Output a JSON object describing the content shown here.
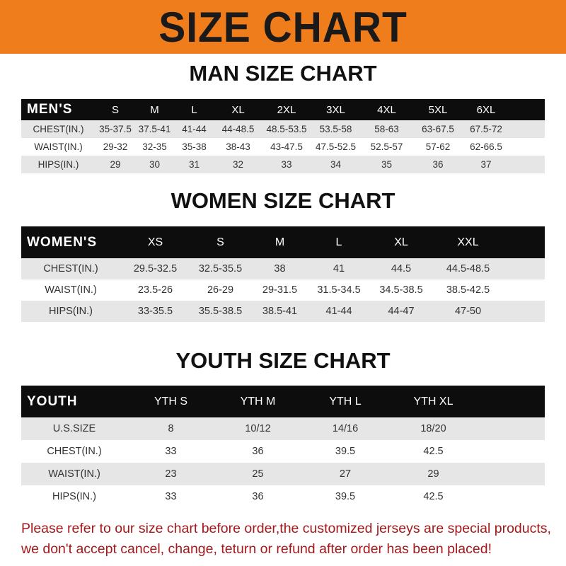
{
  "banner": "SIZE CHART",
  "men": {
    "title": "MAN SIZE CHART",
    "header": "MEN'S",
    "sizes": [
      "S",
      "M",
      "L",
      "XL",
      "2XL",
      "3XL",
      "4XL",
      "5XL",
      "6XL"
    ],
    "rows": [
      {
        "label": "CHEST(IN.)",
        "values": [
          "35-37.5",
          "37.5-41",
          "41-44",
          "44-48.5",
          "48.5-53.5",
          "53.5-58",
          "58-63",
          "63-67.5",
          "67.5-72"
        ]
      },
      {
        "label": "WAIST(IN.)",
        "values": [
          "29-32",
          "32-35",
          "35-38",
          "38-43",
          "43-47.5",
          "47.5-52.5",
          "52.5-57",
          "57-62",
          "62-66.5"
        ]
      },
      {
        "label": "HIPS(IN.)",
        "values": [
          "29",
          "30",
          "31",
          "32",
          "33",
          "34",
          "35",
          "36",
          "37"
        ]
      }
    ]
  },
  "women": {
    "title": "WOMEN SIZE CHART",
    "header": "WOMEN'S",
    "sizes": [
      "XS",
      "S",
      "M",
      "L",
      "XL",
      "XXL"
    ],
    "rows": [
      {
        "label": "CHEST(IN.)",
        "values": [
          "29.5-32.5",
          "32.5-35.5",
          "38",
          "41",
          "44.5",
          "44.5-48.5"
        ]
      },
      {
        "label": "WAIST(IN.)",
        "values": [
          "23.5-26",
          "26-29",
          "29-31.5",
          "31.5-34.5",
          "34.5-38.5",
          "38.5-42.5"
        ]
      },
      {
        "label": "HIPS(IN.)",
        "values": [
          "33-35.5",
          "35.5-38.5",
          "38.5-41",
          "41-44",
          "44-47",
          "47-50"
        ]
      }
    ]
  },
  "youth": {
    "title": "YOUTH SIZE CHART",
    "header": "YOUTH",
    "sizes": [
      "YTH S",
      "YTH M",
      "YTH L",
      "YTH XL"
    ],
    "rows": [
      {
        "label": "U.S.SIZE",
        "values": [
          "8",
          "10/12",
          "14/16",
          "18/20"
        ]
      },
      {
        "label": "CHEST(IN.)",
        "values": [
          "33",
          "36",
          "39.5",
          "42.5"
        ]
      },
      {
        "label": "WAIST(IN.)",
        "values": [
          "23",
          "25",
          "27",
          "29"
        ]
      },
      {
        "label": "HIPS(IN.)",
        "values": [
          "33",
          "36",
          "39.5",
          "42.5"
        ]
      }
    ]
  },
  "note": {
    "line1": "Please refer to our size chart before order,the customized jerseys are special products,",
    "line2": "we don't accept cancel, change, teturn or refund after order has been placed!"
  }
}
